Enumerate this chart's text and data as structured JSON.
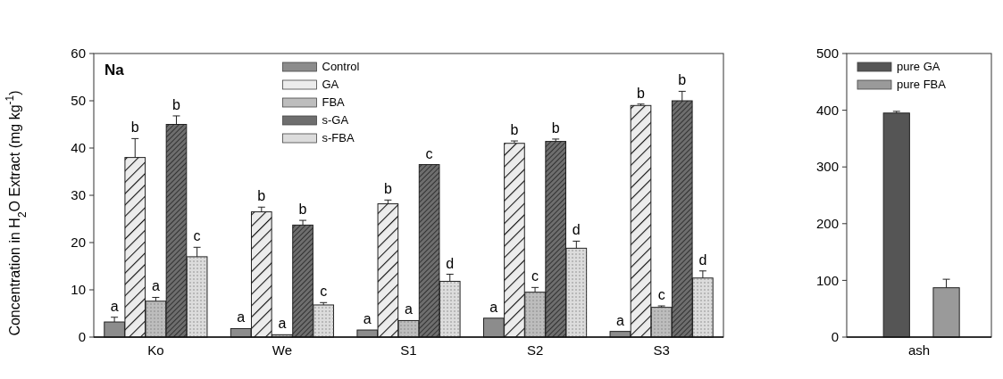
{
  "chart_data": [
    {
      "type": "bar",
      "title": "Na",
      "ylabel": "Concentration in H$_{2}$O Extract (mg kg$^{-1}$)",
      "categories": [
        "Ko",
        "We",
        "S1",
        "S2",
        "S3"
      ],
      "ylim": [
        0,
        60
      ],
      "yticks": [
        0,
        10,
        20,
        30,
        40,
        50,
        60
      ],
      "legend": "top",
      "grid": false,
      "series": [
        {
          "name": "Control",
          "color": "#8c8c8c",
          "values": [
            3.2,
            1.8,
            1.5,
            4,
            1.2
          ],
          "errors": [
            1,
            null,
            null,
            null,
            null
          ],
          "value_labels": [
            "a",
            "a",
            "a",
            "a",
            "a"
          ]
        },
        {
          "name": "GA",
          "color": "#ececec",
          "values": [
            38,
            26.5,
            28.2,
            41,
            49
          ],
          "errors": [
            4,
            1,
            0.8,
            0.5,
            0.3
          ],
          "value_labels": [
            "b",
            "b",
            "b",
            "b",
            "b"
          ]
        },
        {
          "name": "FBA",
          "color": "#bdbdbd",
          "values": [
            7.6,
            0.5,
            3.5,
            9.5,
            6.3
          ],
          "errors": [
            0.8,
            null,
            null,
            1,
            0.3
          ],
          "value_labels": [
            "a",
            "a",
            "a",
            "c",
            "c"
          ]
        },
        {
          "name": "s-GA",
          "color": "#6e6e6e",
          "values": [
            45,
            23.7,
            36.5,
            41.4,
            50
          ],
          "errors": [
            1.8,
            1,
            null,
            0.5,
            2
          ],
          "value_labels": [
            "b",
            "b",
            "c",
            "b",
            "b"
          ]
        },
        {
          "name": "s-FBA",
          "color": "#dcdcdc",
          "values": [
            17,
            6.8,
            11.8,
            18.8,
            12.5
          ],
          "errors": [
            2,
            0.5,
            1.5,
            1.5,
            1.5
          ],
          "value_labels": [
            "c",
            "c",
            "d",
            "d",
            "d"
          ]
        }
      ]
    },
    {
      "type": "bar",
      "categories": [
        "ash"
      ],
      "ylim": [
        0,
        500
      ],
      "yticks": [
        0,
        100,
        200,
        300,
        400,
        500
      ],
      "legend": "top left",
      "grid": false,
      "series": [
        {
          "name": "pure GA",
          "color": "#555555",
          "values": [
            395
          ],
          "errors": [
            3
          ]
        },
        {
          "name": "pure FBA",
          "color": "#9a9a9a",
          "values": [
            87
          ],
          "errors": [
            15
          ]
        }
      ]
    }
  ]
}
